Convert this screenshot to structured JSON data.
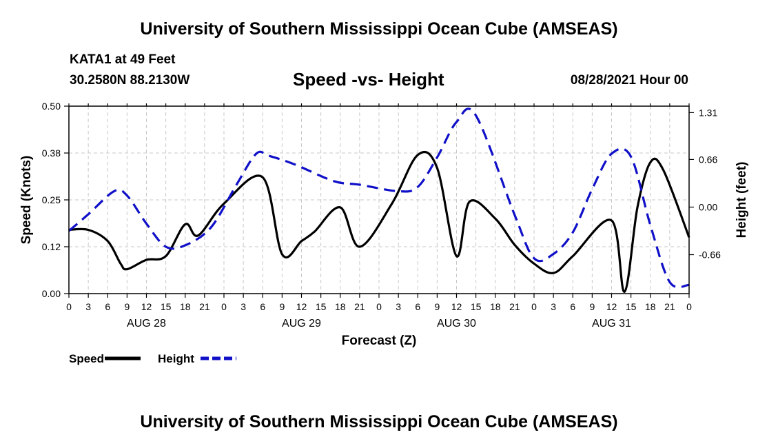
{
  "header": {
    "title": "University of Southern Mississippi Ocean Cube (AMSEAS)",
    "station": "KATA1 at 49 Feet",
    "coords": "30.2580N  88.2130W",
    "subtitle": "Speed -vs- Height",
    "datetime": "08/28/2021 Hour 00"
  },
  "footer": {
    "title": "University of Southern Mississippi Ocean Cube (AMSEAS)"
  },
  "chart_data": {
    "type": "line",
    "title": "Speed -vs- Height",
    "xlabel": "Forecast (Z)",
    "ylabel": "Speed (Knots)",
    "y2label": "Height (feet)",
    "xlim": [
      0,
      96
    ],
    "ylim": [
      0,
      0.5
    ],
    "y2lim": [
      -1.2,
      1.4
    ],
    "x_ticks": [
      0,
      3,
      6,
      9,
      12,
      15,
      18,
      21,
      24,
      27,
      30,
      33,
      36,
      39,
      42,
      45,
      48,
      51,
      54,
      57,
      60,
      63,
      66,
      69,
      72,
      75,
      78,
      81,
      84,
      87,
      90,
      93,
      96
    ],
    "x_tick_labels": [
      "0",
      "3",
      "6",
      "9",
      "12",
      "15",
      "18",
      "21",
      "0",
      "3",
      "6",
      "9",
      "12",
      "15",
      "18",
      "21",
      "0",
      "3",
      "6",
      "9",
      "12",
      "15",
      "18",
      "21",
      "0",
      "3",
      "6",
      "9",
      "12",
      "15",
      "18",
      "21",
      "0"
    ],
    "day_labels": [
      {
        "x": 12,
        "label": "AUG 28"
      },
      {
        "x": 36,
        "label": "AUG 29"
      },
      {
        "x": 60,
        "label": "AUG 30"
      },
      {
        "x": 84,
        "label": "AUG 31"
      }
    ],
    "y_ticks": [
      0.0,
      0.125,
      0.25,
      0.375,
      0.5
    ],
    "y_tick_labels": [
      "0.00",
      "0.12",
      "0.25",
      "0.38",
      "0.50"
    ],
    "y2_ticks": [
      -0.66,
      0.0,
      0.66,
      1.31
    ],
    "y2_tick_labels": [
      "-0.66",
      "0.00",
      "0.66",
      "1.31"
    ],
    "grid": true,
    "legend": [
      {
        "name": "Speed",
        "color": "#000000",
        "dash": "solid"
      },
      {
        "name": "Height",
        "color": "#1010c8",
        "dash": "dashed"
      }
    ],
    "series": [
      {
        "name": "Speed",
        "axis": "left",
        "color": "#000000",
        "x": [
          0,
          3,
          6,
          8,
          9,
          12,
          15,
          18,
          20,
          24,
          30,
          33,
          36,
          38,
          42,
          45,
          50,
          54,
          57,
          60,
          62,
          66,
          69,
          72,
          75,
          78,
          84,
          86,
          88,
          90,
          92,
          96
        ],
        "y": [
          0.17,
          0.17,
          0.14,
          0.08,
          0.065,
          0.09,
          0.1,
          0.185,
          0.155,
          0.24,
          0.31,
          0.105,
          0.14,
          0.165,
          0.23,
          0.125,
          0.24,
          0.37,
          0.335,
          0.1,
          0.245,
          0.2,
          0.13,
          0.08,
          0.055,
          0.1,
          0.195,
          0.005,
          0.23,
          0.35,
          0.33,
          0.15
        ]
      },
      {
        "name": "Height",
        "axis": "right",
        "color": "#1010c8",
        "x": [
          0,
          3,
          7,
          9,
          12,
          15,
          18,
          22,
          26,
          29,
          31,
          35,
          41,
          45,
          51,
          54,
          57,
          60,
          63,
          69,
          72,
          75,
          78,
          81,
          84,
          87,
          90,
          93,
          96
        ],
        "y": [
          -0.33,
          -0.1,
          0.22,
          0.16,
          -0.23,
          -0.55,
          -0.53,
          -0.28,
          0.32,
          0.74,
          0.71,
          0.59,
          0.36,
          0.31,
          0.22,
          0.28,
          0.69,
          1.18,
          1.27,
          -0.11,
          -0.71,
          -0.65,
          -0.35,
          0.25,
          0.74,
          0.7,
          -0.25,
          -1.04,
          -1.08
        ]
      }
    ]
  }
}
